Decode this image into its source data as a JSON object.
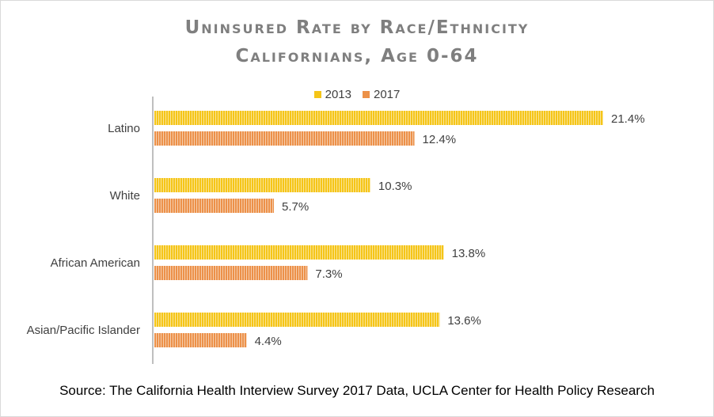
{
  "title_line1": "Uninsured Rate by Race/Ethnicity",
  "title_line2": "Californians, Age 0-64",
  "source": "Source: The California Health Interview Survey 2017 Data, UCLA Center for Health Policy Research",
  "colors": {
    "s2013": "#f5c518",
    "s2017": "#ec9149",
    "axis": "#bfbfbf"
  },
  "chart_data": {
    "type": "bar",
    "orientation": "horizontal",
    "categories": [
      "Latino",
      "White",
      "African American",
      "Asian/Pacific Islander"
    ],
    "series": [
      {
        "name": "2013",
        "values": [
          21.4,
          10.3,
          13.8,
          13.6
        ],
        "labels": [
          "21.4%",
          "10.3%",
          "13.8%",
          "13.6%"
        ]
      },
      {
        "name": "2017",
        "values": [
          12.4,
          5.7,
          7.3,
          4.4
        ],
        "labels": [
          "12.4%",
          "5.7%",
          "7.3%",
          "4.4%"
        ]
      }
    ],
    "xlim": [
      0,
      22
    ],
    "legend": "top",
    "grid": false
  }
}
